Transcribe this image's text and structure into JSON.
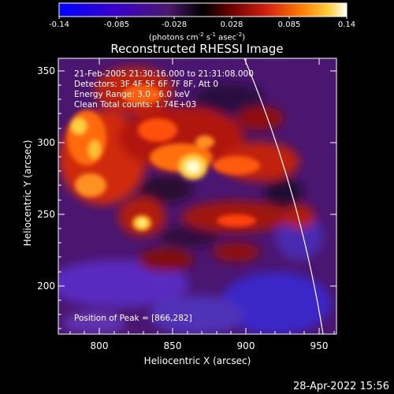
{
  "colorbar": {
    "ticks": [
      "-0.14",
      "-0.085",
      "-0.028",
      "0.028",
      "0.085",
      "0.14"
    ],
    "units_text": "(photons cm",
    "units_sup1": "-2",
    "units_mid": " s",
    "units_sup2": "-1",
    "units_mid2": " asec",
    "units_sup3": "-2",
    "units_end": ")"
  },
  "plot": {
    "title": "Reconstructed RHESSI Image",
    "xlabel": "Heliocentric X (arcsec)",
    "ylabel": "Heliocentric Y (arcsec)",
    "xticks": [
      "800",
      "850",
      "900",
      "950"
    ],
    "yticks": [
      "350",
      "300",
      "250",
      "200"
    ],
    "info_lines": [
      "21-Feb-2005 21:30:16.000 to 21:31:08.000",
      "Detectors: 3F 4F 5F 6F 7F 8F, Att 0",
      "Energy Range: 3.0 - 6.0 keV",
      "Clean     Total counts: 1.74E+03"
    ],
    "peak_text": "Position of Peak = [866,282]"
  },
  "footer": {
    "timestamp": "28-Apr-2022 15:56"
  },
  "colors": {
    "background": "#000000",
    "axes": "#ffffff",
    "colormap": [
      "#0000ff",
      "#3a00c8",
      "#5a1a9a",
      "#000000",
      "#5a0000",
      "#b01010",
      "#ff5000",
      "#ffb000",
      "#ffff60",
      "#ffffff"
    ]
  }
}
